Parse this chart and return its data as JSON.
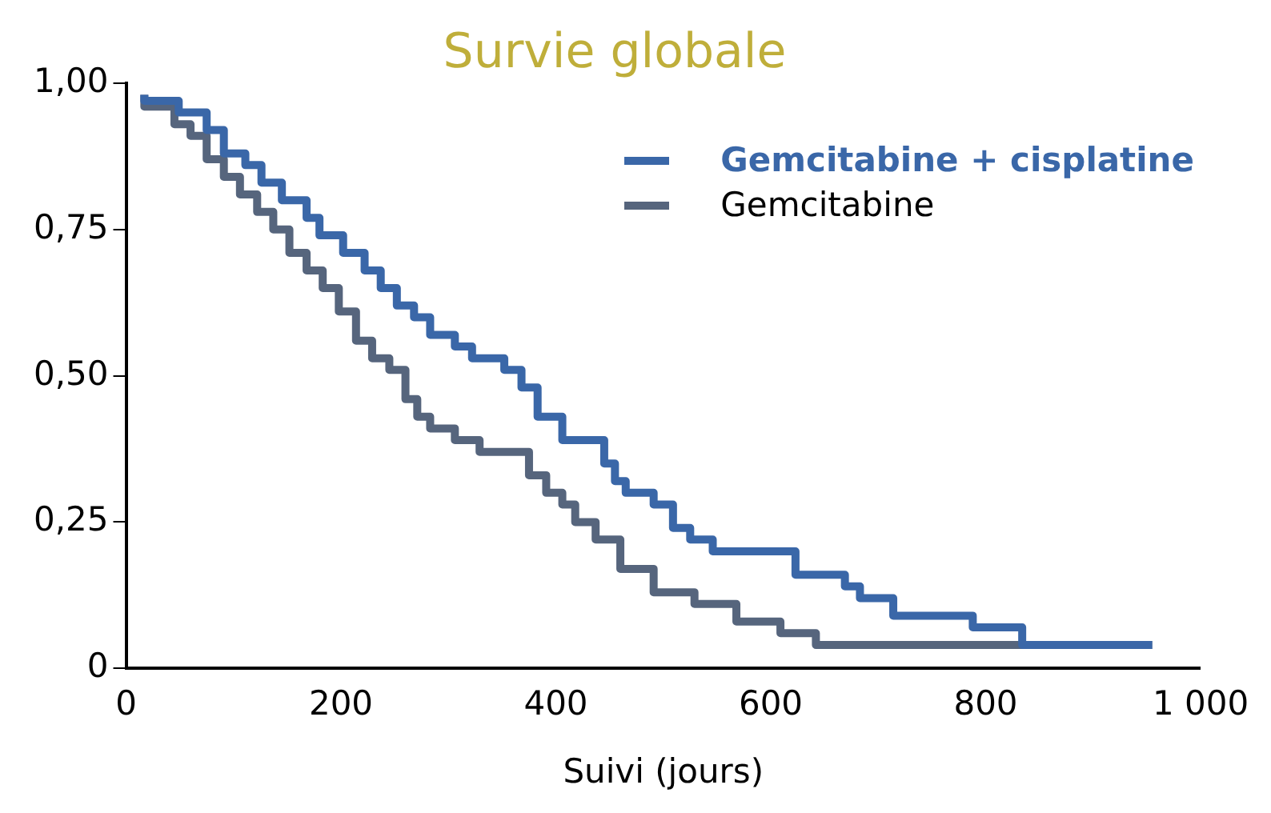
{
  "chart_data": {
    "type": "step",
    "title": "Survie globale",
    "xlabel": "Suivi (jours)",
    "series": [
      {
        "name": "Gemcitabine + cisplatine",
        "color": "#3a67a8",
        "x": [
          17,
          49,
          75,
          91,
          111,
          126,
          145,
          168,
          180,
          202,
          222,
          237,
          252,
          268,
          283,
          306,
          322,
          352,
          368,
          383,
          406,
          445,
          455,
          465,
          491,
          509,
          525,
          546,
          623,
          669,
          683,
          714,
          788,
          834,
          868,
          955
        ],
        "values": [
          0.98,
          0.97,
          0.95,
          0.92,
          0.88,
          0.86,
          0.83,
          0.8,
          0.77,
          0.74,
          0.71,
          0.68,
          0.65,
          0.62,
          0.6,
          0.57,
          0.55,
          0.53,
          0.51,
          0.48,
          0.43,
          0.39,
          0.35,
          0.32,
          0.3,
          0.28,
          0.24,
          0.22,
          0.2,
          0.16,
          0.14,
          0.12,
          0.09,
          0.07,
          0.04,
          0.04
        ]
      },
      {
        "name": "Gemcitabine",
        "color": "#56657d",
        "x": [
          17,
          45,
          60,
          75,
          91,
          106,
          122,
          137,
          152,
          168,
          183,
          198,
          214,
          229,
          245,
          260,
          271,
          283,
          306,
          329,
          375,
          391,
          406,
          418,
          437,
          460,
          491,
          529,
          568,
          609,
          642,
          654,
          955
        ],
        "values": [
          0.98,
          0.96,
          0.93,
          0.91,
          0.87,
          0.84,
          0.81,
          0.78,
          0.75,
          0.71,
          0.68,
          0.65,
          0.61,
          0.56,
          0.53,
          0.51,
          0.46,
          0.43,
          0.41,
          0.39,
          0.37,
          0.33,
          0.3,
          0.28,
          0.25,
          0.22,
          0.17,
          0.13,
          0.11,
          0.08,
          0.06,
          0.04,
          0.04
        ]
      }
    ],
    "xlim": [
      0,
      1000
    ],
    "xticks": [
      0,
      200,
      400,
      600,
      800,
      {
        "value": 1000,
        "label": "1 000"
      }
    ],
    "ylim": [
      0,
      1
    ],
    "yticks": [
      {
        "value": 0,
        "label": "0"
      },
      {
        "value": 0.25,
        "label": "0,25"
      },
      {
        "value": 0.5,
        "label": "0,50"
      },
      {
        "value": 0.75,
        "label": "0,75"
      },
      {
        "value": 1,
        "label": "1,00"
      }
    ],
    "grid": false,
    "legend": "top right",
    "marker": "none",
    "line_style": "solid"
  }
}
